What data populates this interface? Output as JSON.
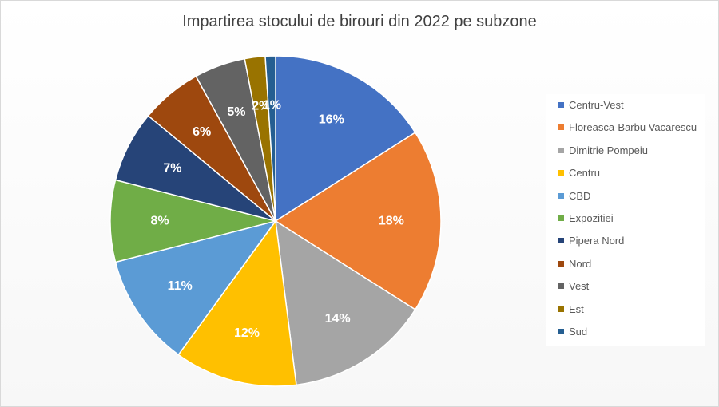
{
  "chart_data": {
    "type": "pie",
    "title": "Impartirea stocului de birouri din 2022 pe subzone",
    "legend_position": "right",
    "slices": [
      {
        "name": "Centru-Vest",
        "value": 16,
        "label": "16%",
        "color": "#4472C4"
      },
      {
        "name": "Floreasca-Barbu Vacarescu",
        "value": 18,
        "label": "18%",
        "color": "#ED7D31"
      },
      {
        "name": "Dimitrie Pompeiu",
        "value": 14,
        "label": "14%",
        "color": "#A5A5A5"
      },
      {
        "name": "Centru",
        "value": 12,
        "label": "12%",
        "color": "#FFC000"
      },
      {
        "name": "CBD",
        "value": 11,
        "label": "11%",
        "color": "#5B9BD5"
      },
      {
        "name": "Expozitiei",
        "value": 8,
        "label": "8%",
        "color": "#70AD47"
      },
      {
        "name": "Pipera Nord",
        "value": 7,
        "label": "7%",
        "color": "#264478"
      },
      {
        "name": "Nord",
        "value": 6,
        "label": "6%",
        "color": "#9E480E"
      },
      {
        "name": "Vest",
        "value": 5,
        "label": "5%",
        "color": "#636363"
      },
      {
        "name": "Est",
        "value": 2,
        "label": "2%",
        "color": "#997300"
      },
      {
        "name": "Sud",
        "value": 1,
        "label": "1%",
        "color": "#255E91"
      }
    ]
  }
}
